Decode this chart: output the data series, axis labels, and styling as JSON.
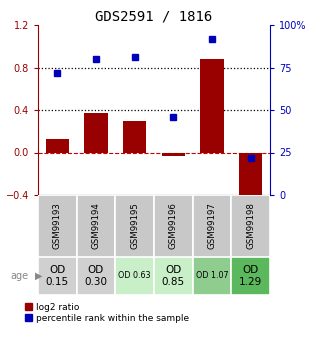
{
  "title": "GDS2591 / 1816",
  "samples": [
    "GSM99193",
    "GSM99194",
    "GSM99195",
    "GSM99196",
    "GSM99197",
    "GSM99198"
  ],
  "log2_ratio": [
    0.13,
    0.37,
    0.3,
    -0.03,
    0.88,
    -0.48
  ],
  "percentile_rank": [
    72,
    80,
    81,
    46,
    92,
    22
  ],
  "ylim_left": [
    -0.4,
    1.2
  ],
  "ylim_right": [
    0,
    100
  ],
  "yticks_left": [
    -0.4,
    0.0,
    0.4,
    0.8,
    1.2
  ],
  "yticks_right": [
    0,
    25,
    50,
    75,
    100
  ],
  "hlines": [
    0.4,
    0.8
  ],
  "age_labels": [
    "OD\n0.15",
    "OD\n0.30",
    "OD 0.63",
    "OD\n0.85",
    "OD 1.07",
    "OD\n1.29"
  ],
  "age_label_big": [
    true,
    true,
    false,
    true,
    false,
    true
  ],
  "age_bg_colors": [
    "#d0d0d0",
    "#d0d0d0",
    "#c8efc8",
    "#c8efc8",
    "#8fcd8f",
    "#5cb85c"
  ],
  "sample_bg_color": "#c8c8c8",
  "bar_color": "#990000",
  "dot_color": "#0000bb",
  "zero_line_color": "#cc0000",
  "dotted_line_color": "#000000",
  "legend_bar_label": "log2 ratio",
  "legend_dot_label": "percentile rank within the sample",
  "title_fontsize": 10,
  "tick_fontsize": 7,
  "label_fontsize": 7
}
